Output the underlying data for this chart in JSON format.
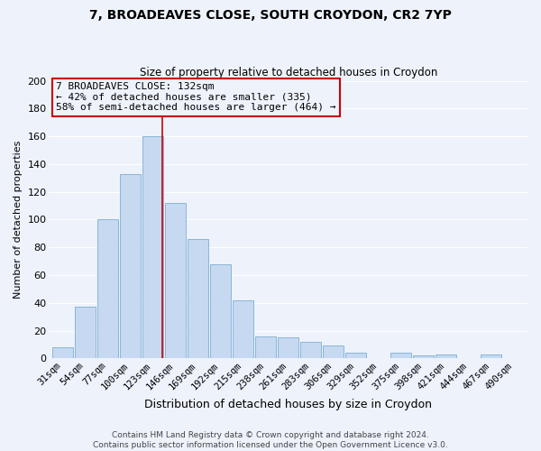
{
  "title": "7, BROADEAVES CLOSE, SOUTH CROYDON, CR2 7YP",
  "subtitle": "Size of property relative to detached houses in Croydon",
  "xlabel": "Distribution of detached houses by size in Croydon",
  "ylabel": "Number of detached properties",
  "categories": [
    "31sqm",
    "54sqm",
    "77sqm",
    "100sqm",
    "123sqm",
    "146sqm",
    "169sqm",
    "192sqm",
    "215sqm",
    "238sqm",
    "261sqm",
    "283sqm",
    "306sqm",
    "329sqm",
    "352sqm",
    "375sqm",
    "398sqm",
    "421sqm",
    "444sqm",
    "467sqm",
    "490sqm"
  ],
  "values": [
    8,
    37,
    100,
    133,
    160,
    112,
    86,
    68,
    42,
    16,
    15,
    12,
    9,
    4,
    0,
    4,
    2,
    3,
    0,
    3,
    0
  ],
  "bar_color": "#c6d9f0",
  "bar_edge_color": "#7bafd4",
  "bg_color": "#eef2fb",
  "grid_color": "#ffffff",
  "vline_color": "#cc0000",
  "vline_x_idx": 4.42,
  "ylim": [
    0,
    200
  ],
  "yticks": [
    0,
    20,
    40,
    60,
    80,
    100,
    120,
    140,
    160,
    180,
    200
  ],
  "annotation_title": "7 BROADEAVES CLOSE: 132sqm",
  "annotation_line1": "← 42% of detached houses are smaller (335)",
  "annotation_line2": "58% of semi-detached houses are larger (464) →",
  "footer1": "Contains HM Land Registry data © Crown copyright and database right 2024.",
  "footer2": "Contains public sector information licensed under the Open Government Licence v3.0.",
  "title_fontsize": 10,
  "subtitle_fontsize": 8.5,
  "xlabel_fontsize": 9,
  "ylabel_fontsize": 8,
  "tick_fontsize": 7.5,
  "annot_fontsize": 8,
  "footer_fontsize": 6.5
}
